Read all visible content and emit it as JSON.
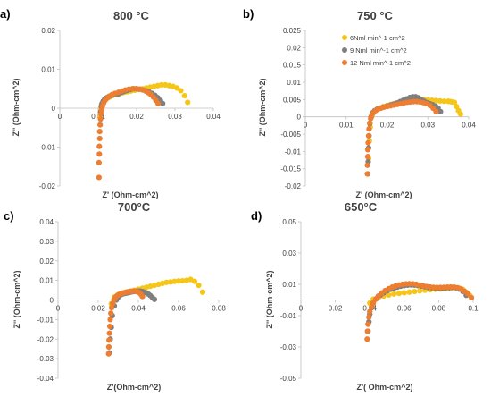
{
  "colors": {
    "series_6": "#f5c518",
    "series_9": "#7f7f7f",
    "series_12": "#ed7d31",
    "axis": "#bfbfbf",
    "text": "#404040"
  },
  "chart_data": [
    {
      "type": "scatter",
      "panel_label": "a)",
      "title": "800 °C",
      "xlabel": "Z' (Ohm-cm^2)",
      "ylabel": "Z'' (Ohm-cm^2)",
      "xlim": [
        0,
        0.04
      ],
      "ylim": [
        -0.02,
        0.02
      ],
      "xticks": [
        0,
        0.01,
        0.02,
        0.03,
        0.04
      ],
      "xtick_labels": [
        "0",
        "0.01",
        "0.02",
        "0.03",
        "0.04"
      ],
      "yticks": [
        -0.02,
        -0.01,
        0,
        0.01,
        0.02
      ],
      "ytick_labels": [
        "-0.02",
        "-0.01",
        "0",
        "0.01",
        "0.02"
      ],
      "grid": false,
      "legend": null,
      "series": [
        {
          "color_key": "series_6",
          "x": [
            0.0105,
            0.0107,
            0.0109,
            0.0112,
            0.0116,
            0.012,
            0.0125,
            0.013,
            0.0137,
            0.0145,
            0.0155,
            0.0165,
            0.0175,
            0.0185,
            0.0195,
            0.0205,
            0.0215,
            0.0225,
            0.0235,
            0.0245,
            0.0255,
            0.0265,
            0.0275,
            0.0285,
            0.0295,
            0.0305,
            0.0315,
            0.0325,
            0.0333
          ],
          "y": [
            -0.002,
            0,
            0.001,
            0.0015,
            0.002,
            0.0023,
            0.0026,
            0.0029,
            0.0032,
            0.0035,
            0.0037,
            0.004,
            0.0042,
            0.0044,
            0.0046,
            0.0048,
            0.005,
            0.0052,
            0.0054,
            0.0056,
            0.0058,
            0.006,
            0.006,
            0.0058,
            0.0056,
            0.0052,
            0.0045,
            0.0032,
            0.0015
          ]
        },
        {
          "color_key": "series_9",
          "x": [
            0.0106,
            0.0108,
            0.011,
            0.0113,
            0.0117,
            0.0122,
            0.0128,
            0.0135,
            0.0143,
            0.0152,
            0.016,
            0.0168,
            0.0176,
            0.0184,
            0.0192,
            0.02,
            0.0208,
            0.0216,
            0.0224,
            0.0232,
            0.024,
            0.0248,
            0.0255,
            0.0262,
            0.0268
          ],
          "y": [
            -0.001,
            0.0005,
            0.0012,
            0.0018,
            0.0023,
            0.0027,
            0.003,
            0.0033,
            0.0035,
            0.0037,
            0.004,
            0.0043,
            0.0046,
            0.0048,
            0.005,
            0.005,
            0.0049,
            0.0047,
            0.0045,
            0.0042,
            0.0038,
            0.0033,
            0.0027,
            0.002,
            0.0012
          ]
        },
        {
          "color_key": "series_12",
          "x": [
            0.0102,
            0.0102,
            0.0103,
            0.0103,
            0.0104,
            0.0104,
            0.0105,
            0.0106,
            0.0107,
            0.0109,
            0.0111,
            0.0114,
            0.0118,
            0.0123,
            0.0129,
            0.0136,
            0.0144,
            0.0153,
            0.0162,
            0.0171,
            0.018,
            0.0189,
            0.0198,
            0.0207,
            0.0215,
            0.0223,
            0.023,
            0.0237,
            0.0244,
            0.025,
            0.0256
          ],
          "y": [
            -0.0178,
            -0.014,
            -0.0118,
            -0.0098,
            -0.0078,
            -0.006,
            -0.0043,
            -0.0028,
            -0.0015,
            -0.0005,
            0.0005,
            0.0013,
            0.002,
            0.0026,
            0.0031,
            0.0035,
            0.0038,
            0.0041,
            0.0044,
            0.0047,
            0.0049,
            0.005,
            0.005,
            0.0049,
            0.0047,
            0.0044,
            0.004,
            0.0035,
            0.0028,
            0.002,
            0.0012
          ]
        }
      ]
    },
    {
      "type": "scatter",
      "panel_label": "b)",
      "title": "750 °C",
      "xlabel": "Z' (Ohm-cm^2)",
      "ylabel": "Z'' (Ohm-cm^2)",
      "xlim": [
        0,
        0.04
      ],
      "ylim": [
        -0.02,
        0.025
      ],
      "xticks": [
        0,
        0.01,
        0.02,
        0.03,
        0.04
      ],
      "xtick_labels": [
        "0",
        "0.01",
        "0.02",
        "0.03",
        "0.04"
      ],
      "yticks": [
        -0.02,
        -0.015,
        -0.01,
        -0.005,
        0,
        0.005,
        0.01,
        0.015,
        0.02,
        0.025
      ],
      "ytick_labels": [
        "-0.02",
        "-0.015",
        "-0.01",
        "-0.005",
        "0",
        "0.005",
        "0.01",
        "0.015",
        "0.02",
        "0.025"
      ],
      "grid": false,
      "legend": {
        "placement": "top-right",
        "entries": [
          {
            "label": "6Nml min^-1 cm^2",
            "color_key": "series_6"
          },
          {
            "label": "9 Nml min^-1 cm^2",
            "color_key": "series_9"
          },
          {
            "label": "12 Nml min^-1 cm^2",
            "color_key": "series_12"
          }
        ]
      },
      "series": [
        {
          "color_key": "series_6",
          "x": [
            0.0155,
            0.0157,
            0.0159,
            0.0162,
            0.0166,
            0.017,
            0.0176,
            0.0183,
            0.0191,
            0.02,
            0.021,
            0.022,
            0.023,
            0.024,
            0.025,
            0.026,
            0.027,
            0.028,
            0.029,
            0.03,
            0.031,
            0.032,
            0.033,
            0.034,
            0.035,
            0.0355,
            0.036,
            0.0365,
            0.037,
            0.0375,
            0.038
          ],
          "y": [
            -0.012,
            -0.007,
            -0.003,
            0,
            0.0012,
            0.0018,
            0.0022,
            0.0026,
            0.003,
            0.0033,
            0.0036,
            0.0039,
            0.0042,
            0.0044,
            0.0046,
            0.0048,
            0.0049,
            0.005,
            0.005,
            0.0049,
            0.0048,
            0.0047,
            0.0046,
            0.0045,
            0.0045,
            0.0044,
            0.0043,
            0.0042,
            0.003,
            0.0018,
            0.0008
          ]
        },
        {
          "color_key": "series_9",
          "x": [
            0.0153,
            0.0154,
            0.0155,
            0.0156,
            0.0158,
            0.0161,
            0.0165,
            0.017,
            0.0176,
            0.0183,
            0.0191,
            0.02,
            0.0208,
            0.0216,
            0.0224,
            0.0232,
            0.024,
            0.0248,
            0.0256,
            0.0263,
            0.027,
            0.0277,
            0.0284,
            0.0291,
            0.0298,
            0.0305,
            0.0312,
            0.0319,
            0.0325,
            0.0331
          ],
          "y": [
            -0.0165,
            -0.013,
            -0.009,
            -0.0055,
            -0.002,
            0,
            0.0012,
            0.0018,
            0.0022,
            0.0025,
            0.0028,
            0.0031,
            0.0034,
            0.0037,
            0.004,
            0.0044,
            0.0048,
            0.0052,
            0.0056,
            0.0058,
            0.0058,
            0.0055,
            0.005,
            0.0045,
            0.0041,
            0.0038,
            0.0035,
            0.0031,
            0.0025,
            0.0015
          ]
        },
        {
          "color_key": "series_12",
          "x": [
            0.0152,
            0.0152,
            0.0153,
            0.0153,
            0.0154,
            0.0155,
            0.0156,
            0.0158,
            0.016,
            0.0163,
            0.0167,
            0.0172,
            0.0178,
            0.0185,
            0.0193,
            0.0201,
            0.0209,
            0.0217,
            0.0225,
            0.0233,
            0.0241,
            0.0249,
            0.0257,
            0.0265,
            0.0273,
            0.0281,
            0.0289,
            0.0297,
            0.0305,
            0.0313,
            0.032
          ],
          "y": [
            -0.0165,
            -0.014,
            -0.0115,
            -0.0095,
            -0.0075,
            -0.0055,
            -0.0035,
            -0.0018,
            -0.0005,
            0.0005,
            0.0012,
            0.0018,
            0.0022,
            0.0025,
            0.0028,
            0.003,
            0.0032,
            0.0034,
            0.0036,
            0.0038,
            0.004,
            0.0042,
            0.0043,
            0.0044,
            0.0044,
            0.0043,
            0.0041,
            0.0038,
            0.0033,
            0.0025,
            0.0015
          ]
        }
      ]
    },
    {
      "type": "scatter",
      "panel_label": "c)",
      "title": "700°C",
      "xlabel": "Z'(Ohm-cm^2)",
      "ylabel": "Z'' (Ohm-cm^2)",
      "xlim": [
        0,
        0.08
      ],
      "ylim": [
        -0.04,
        0.04
      ],
      "xticks": [
        0,
        0.02,
        0.04,
        0.06,
        0.08
      ],
      "xtick_labels": [
        "0",
        "0.02",
        "0.04",
        "0.06",
        "0.08"
      ],
      "yticks": [
        -0.04,
        -0.03,
        -0.02,
        -0.01,
        0,
        0.01,
        0.02,
        0.03,
        0.04
      ],
      "ytick_labels": [
        "-0.04",
        "-0.03",
        "-0.02",
        "-0.01",
        "0",
        "0.01",
        "0.02",
        "0.03",
        "0.04"
      ],
      "grid": false,
      "legend": null,
      "series": [
        {
          "color_key": "series_6",
          "x": [
            0.0265,
            0.028,
            0.03,
            0.032,
            0.034,
            0.036,
            0.038,
            0.04,
            0.042,
            0.044,
            0.046,
            0.048,
            0.05,
            0.052,
            0.054,
            0.056,
            0.058,
            0.06,
            0.062,
            0.064,
            0.066,
            0.068,
            0.07,
            0.072
          ],
          "y": [
            -0.002,
            0.0015,
            0.0028,
            0.0035,
            0.004,
            0.0045,
            0.005,
            0.0055,
            0.006,
            0.0065,
            0.007,
            0.0075,
            0.008,
            0.0085,
            0.009,
            0.0092,
            0.0095,
            0.0097,
            0.0098,
            0.01,
            0.0105,
            0.0095,
            0.0075,
            0.004
          ]
        },
        {
          "color_key": "series_9",
          "x": [
            0.0255,
            0.026,
            0.0265,
            0.027,
            0.028,
            0.029,
            0.03,
            0.031,
            0.032,
            0.033,
            0.034,
            0.035,
            0.036,
            0.037,
            0.038,
            0.039,
            0.04,
            0.041,
            0.042,
            0.043,
            0.044,
            0.045,
            0.046,
            0.047,
            0.048
          ],
          "y": [
            -0.027,
            -0.02,
            -0.014,
            -0.008,
            -0.003,
            0,
            0.0015,
            0.0025,
            0.003,
            0.0033,
            0.0035,
            0.0037,
            0.004,
            0.0042,
            0.0044,
            0.0045,
            0.0045,
            0.0045,
            0.0043,
            0.004,
            0.0036,
            0.003,
            0.0022,
            0.0012,
            0.0003
          ]
        },
        {
          "color_key": "series_12",
          "x": [
            0.0252,
            0.0253,
            0.0254,
            0.0256,
            0.0258,
            0.026,
            0.0263,
            0.0267,
            0.0272,
            0.0278,
            0.0285,
            0.0292,
            0.03,
            0.0308,
            0.0316,
            0.0324,
            0.0332,
            0.034,
            0.0348,
            0.0356,
            0.0364,
            0.0372,
            0.038,
            0.0388,
            0.0396,
            0.0404,
            0.0412,
            0.042
          ],
          "y": [
            -0.0275,
            -0.024,
            -0.0205,
            -0.017,
            -0.0135,
            -0.01,
            -0.0068,
            -0.004,
            -0.0018,
            0,
            0.0012,
            0.002,
            0.0025,
            0.003,
            0.0033,
            0.0036,
            0.0038,
            0.004,
            0.0042,
            0.0043,
            0.0044,
            0.0045,
            0.0045,
            0.0044,
            0.0042,
            0.0038,
            0.003,
            0.0018
          ]
        }
      ]
    },
    {
      "type": "scatter",
      "panel_label": "d)",
      "title": "650°C",
      "xlabel": "Z'( Ohm-cm^2)",
      "ylabel": "Z'' (Ohm-cm^2)",
      "xlim": [
        0,
        0.1
      ],
      "ylim": [
        -0.05,
        0.05
      ],
      "xticks": [
        0,
        0.02,
        0.04,
        0.06,
        0.08,
        0.1
      ],
      "xtick_labels": [
        "0",
        "0.02",
        "0.04",
        "0.06",
        "0.08",
        "0.1"
      ],
      "yticks": [
        -0.05,
        -0.03,
        -0.01,
        0.01,
        0.03,
        0.05
      ],
      "ytick_labels": [
        "-0.05",
        "-0.03",
        "-0.01",
        "0.01",
        "0.03",
        "0.05"
      ],
      "grid": false,
      "legend": null,
      "series": [
        {
          "color_key": "series_6",
          "x": [
            0.04,
            0.042,
            0.045,
            0.048,
            0.051,
            0.054,
            0.057,
            0.06,
            0.063,
            0.066,
            0.069,
            0.072,
            0.075,
            0.078,
            0.081,
            0.084,
            0.087,
            0.09,
            0.092,
            0.094,
            0.096,
            0.098
          ],
          "y": [
            -0.002,
            0.0005,
            0.0015,
            0.0025,
            0.0032,
            0.0038,
            0.0042,
            0.0046,
            0.005,
            0.0054,
            0.0058,
            0.0062,
            0.0065,
            0.0068,
            0.007,
            0.0072,
            0.0075,
            0.0078,
            0.0075,
            0.0068,
            0.005,
            0.003
          ]
        },
        {
          "color_key": "series_9",
          "x": [
            0.039,
            0.0395,
            0.04,
            0.041,
            0.042,
            0.044,
            0.046,
            0.048,
            0.05,
            0.052,
            0.054,
            0.056,
            0.058,
            0.06,
            0.062,
            0.064,
            0.066,
            0.068,
            0.07,
            0.072,
            0.074,
            0.076,
            0.078,
            0.08,
            0.082,
            0.084,
            0.086,
            0.088,
            0.09,
            0.092,
            0.094,
            0.096
          ],
          "y": [
            -0.02,
            -0.014,
            -0.009,
            -0.005,
            -0.002,
            0.001,
            0.003,
            0.0045,
            0.0058,
            0.0068,
            0.0075,
            0.0082,
            0.0088,
            0.0092,
            0.0095,
            0.0096,
            0.0095,
            0.0092,
            0.0088,
            0.0084,
            0.008,
            0.0078,
            0.0076,
            0.0075,
            0.0075,
            0.0076,
            0.0078,
            0.008,
            0.0078,
            0.007,
            0.0055,
            0.003
          ]
        },
        {
          "color_key": "series_12",
          "x": [
            0.0385,
            0.0387,
            0.039,
            0.0395,
            0.04,
            0.041,
            0.042,
            0.0435,
            0.045,
            0.047,
            0.049,
            0.051,
            0.053,
            0.055,
            0.057,
            0.059,
            0.061,
            0.063,
            0.065,
            0.067,
            0.069,
            0.071,
            0.073,
            0.075,
            0.077,
            0.079,
            0.081,
            0.083,
            0.085,
            0.087,
            0.089,
            0.091,
            0.093,
            0.095,
            0.097,
            0.099
          ],
          "y": [
            -0.025,
            -0.02,
            -0.0155,
            -0.011,
            -0.0075,
            -0.0045,
            -0.002,
            0.0005,
            0.0025,
            0.0045,
            0.006,
            0.0072,
            0.0082,
            0.009,
            0.0096,
            0.01,
            0.0103,
            0.0104,
            0.0103,
            0.01,
            0.0095,
            0.009,
            0.0086,
            0.0083,
            0.0081,
            0.008,
            0.008,
            0.0081,
            0.0082,
            0.0083,
            0.0082,
            0.0078,
            0.007,
            0.0056,
            0.0038,
            0.0015
          ]
        }
      ]
    }
  ]
}
